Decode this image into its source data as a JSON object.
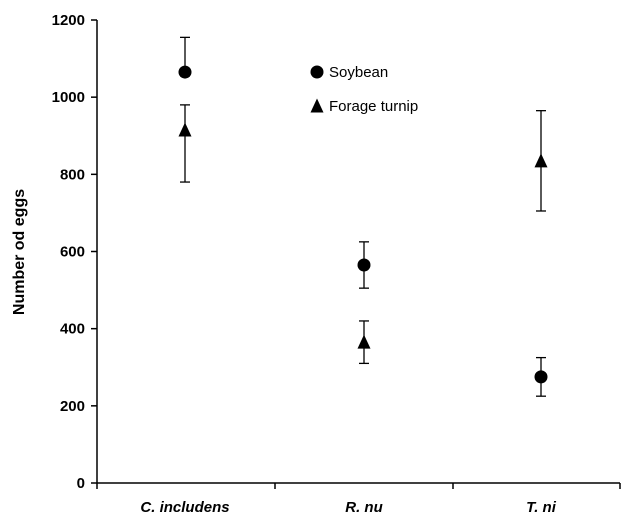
{
  "chart_data": {
    "type": "scatter",
    "categories": [
      "C. includens",
      "R. nu",
      "T. ni"
    ],
    "ylabel": "Number od eggs",
    "xlabel": "",
    "ylim": [
      0,
      1200
    ],
    "yticks": [
      0,
      200,
      400,
      600,
      800,
      1000,
      1200
    ],
    "grid": false,
    "legend_position": "top-center",
    "series": [
      {
        "name": "Soybean",
        "marker": "circle",
        "values": [
          1065,
          565,
          275
        ],
        "err_low": [
          1055,
          505,
          225
        ],
        "err_high": [
          1155,
          625,
          325
        ]
      },
      {
        "name": "Forage turnip",
        "marker": "triangle",
        "values": [
          915,
          365,
          835
        ],
        "err_low": [
          780,
          310,
          705
        ],
        "err_high": [
          980,
          420,
          965
        ]
      }
    ]
  }
}
